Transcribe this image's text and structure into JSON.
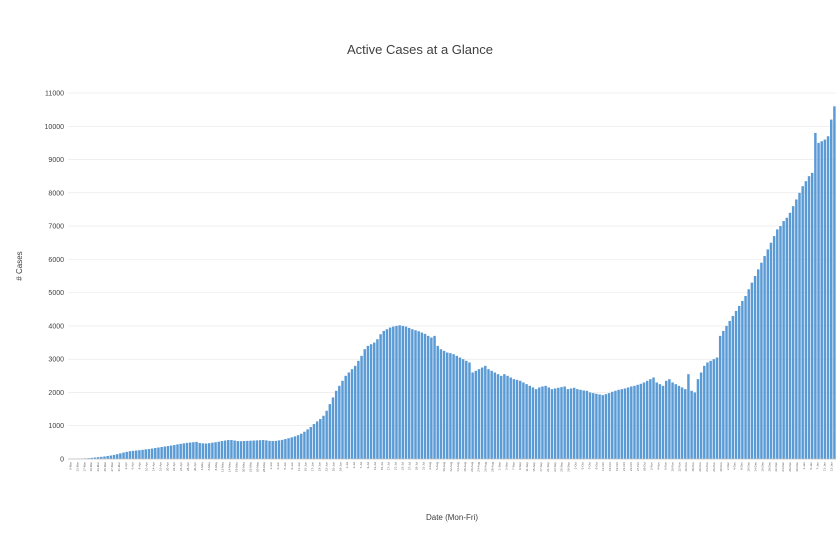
{
  "chart_data": {
    "type": "bar",
    "title": "Active Cases at a Glance",
    "xlabel": "Date (Mon-Fri)",
    "ylabel": "# Cases",
    "ylim": [
      0,
      11000
    ],
    "yticks": [
      0,
      1000,
      2000,
      3000,
      4000,
      5000,
      6000,
      7000,
      8000,
      9000,
      10000,
      11000
    ],
    "grid": true,
    "legend": "none",
    "color": "#5b9bd5",
    "x_tick_labels": [
      "9-Mar",
      "13-Mar",
      "17-Mar",
      "19-Mar",
      "23-Mar",
      "25-Mar",
      "27-Mar",
      "31-Mar",
      "2-Apr",
      "6-Apr",
      "8-Apr",
      "10-Apr",
      "14-Apr",
      "16-Apr",
      "20-Apr",
      "22-Apr",
      "24-Apr",
      "28-Apr",
      "30-Apr",
      "4-May",
      "6-May",
      "8-May",
      "12-May",
      "14-May",
      "18-May",
      "20-May",
      "22-May",
      "26-May",
      "28-May",
      "1-Jun",
      "3-Jun",
      "5-Jun",
      "9-Jun",
      "11-Jun",
      "15-Jun",
      "17-Jun",
      "19-Jun",
      "23-Jun",
      "25-Jun",
      "29-Jun",
      "1-Jul",
      "3-Jul",
      "7-Jul",
      "9-Jul",
      "13-Jul",
      "15-Jul",
      "17-Jul",
      "21-Jul",
      "23-Jul",
      "27-Jul",
      "29-Jul",
      "31-Jul",
      "4-Aug",
      "6-Aug",
      "10-Aug",
      "12-Aug",
      "14-Aug",
      "18-Aug",
      "20-Aug",
      "24-Aug",
      "26-Aug",
      "28-Aug",
      "1-Sep",
      "3-Sep",
      "7-Sep",
      "9-Sep",
      "11-Sep",
      "15-Sep",
      "17-Sep",
      "21-Sep",
      "23-Sep",
      "25-Sep",
      "29-Sep",
      "1-Oct",
      "5-Oct",
      "7-Oct",
      "9-Oct",
      "13-Oct",
      "15-Oct",
      "19-Oct",
      "21-Oct",
      "23-Oct",
      "27-Oct",
      "29-Oct",
      "2-Nov",
      "4-Nov",
      "6-Nov",
      "10-Nov",
      "12-Nov",
      "16-Nov",
      "18-Nov",
      "20-Nov",
      "24-Nov",
      "26-Nov",
      "30-Nov",
      "2-Dec",
      "4-Dec",
      "8-Dec",
      "10-Dec",
      "14-Dec",
      "16-Dec",
      "18-Dec",
      "22-Dec",
      "24-Dec",
      "28-Dec",
      "30-Dec",
      "1-Jan",
      "5-Jan",
      "7-Jan",
      "11-Jan",
      "13-Jan"
    ],
    "values": [
      2,
      3,
      5,
      8,
      12,
      18,
      25,
      35,
      45,
      55,
      65,
      75,
      90,
      105,
      125,
      145,
      170,
      195,
      215,
      235,
      245,
      255,
      265,
      275,
      290,
      300,
      315,
      330,
      345,
      360,
      375,
      390,
      405,
      420,
      440,
      455,
      470,
      485,
      495,
      505,
      515,
      480,
      470,
      465,
      475,
      490,
      505,
      520,
      540,
      555,
      570,
      570,
      555,
      540,
      535,
      540,
      545,
      550,
      555,
      560,
      565,
      570,
      560,
      545,
      540,
      545,
      560,
      575,
      600,
      625,
      650,
      680,
      715,
      760,
      820,
      890,
      960,
      1050,
      1130,
      1200,
      1300,
      1450,
      1650,
      1850,
      2050,
      2200,
      2350,
      2500,
      2600,
      2700,
      2800,
      2950,
      3100,
      3300,
      3400,
      3450,
      3500,
      3600,
      3750,
      3850,
      3900,
      3950,
      3980,
      4000,
      4020,
      4000,
      3980,
      3940,
      3900,
      3870,
      3840,
      3800,
      3760,
      3700,
      3650,
      3700,
      3400,
      3300,
      3250,
      3200,
      3180,
      3150,
      3100,
      3050,
      3000,
      2950,
      2900,
      2600,
      2650,
      2700,
      2750,
      2800,
      2700,
      2650,
      2600,
      2550,
      2500,
      2550,
      2500,
      2450,
      2400,
      2380,
      2350,
      2300,
      2250,
      2200,
      2150,
      2100,
      2150,
      2180,
      2200,
      2150,
      2100,
      2120,
      2140,
      2160,
      2180,
      2100,
      2120,
      2140,
      2100,
      2080,
      2060,
      2050,
      2000,
      1980,
      1960,
      1940,
      1920,
      1950,
      1980,
      2020,
      2050,
      2080,
      2100,
      2120,
      2150,
      2180,
      2200,
      2230,
      2260,
      2300,
      2350,
      2400,
      2450,
      2300,
      2250,
      2200,
      2350,
      2400,
      2300,
      2250,
      2200,
      2150,
      2100,
      2550,
      2050,
      2000,
      2400,
      2600,
      2800,
      2900,
      2950,
      3000,
      3050,
      3700,
      3850,
      4000,
      4150,
      4300,
      4450,
      4600,
      4750,
      4900,
      5100,
      5300,
      5500,
      5700,
      5900,
      6100,
      6300,
      6500,
      6700,
      6900,
      7000,
      7150,
      7250,
      7400,
      7600,
      7800,
      8000,
      8200,
      8350,
      8500,
      8600,
      9800,
      9500,
      9550,
      9600,
      9700,
      10200,
      10600
    ]
  }
}
